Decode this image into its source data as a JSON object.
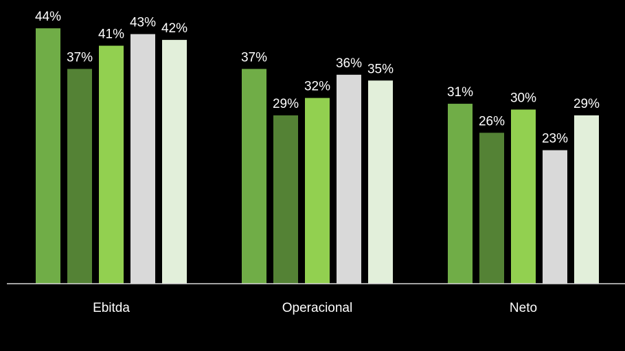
{
  "chart_data": {
    "type": "bar",
    "categories": [
      "Ebitda",
      "Operacional",
      "Neto"
    ],
    "series": [
      {
        "values": [
          44,
          37,
          31
        ],
        "color": "#70AD47"
      },
      {
        "values": [
          37,
          29,
          26
        ],
        "color": "#548235"
      },
      {
        "values": [
          41,
          32,
          30
        ],
        "color": "#92D050"
      },
      {
        "values": [
          43,
          36,
          23
        ],
        "color": "#D9D9D9"
      },
      {
        "values": [
          42,
          35,
          29
        ],
        "color": "#E2EFDA"
      }
    ],
    "value_format": "percent",
    "ylim": [
      0,
      50
    ],
    "grid": false,
    "legend": "none",
    "background": "#000000",
    "axis_color": "#D9D9D9",
    "text_color": "#FFFFFF"
  }
}
